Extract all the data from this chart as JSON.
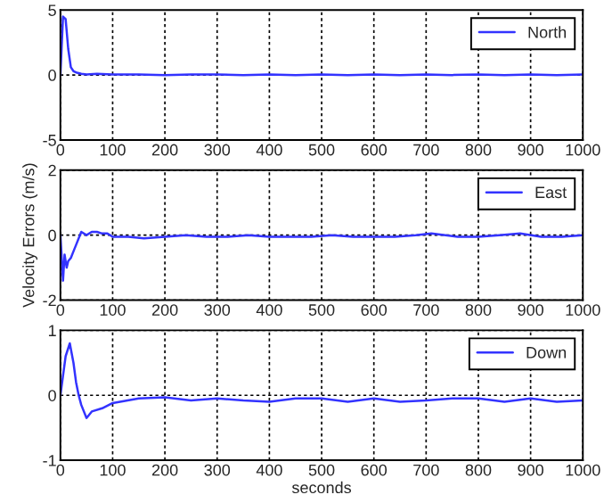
{
  "chart_data": [
    {
      "type": "line",
      "x": [
        0,
        5,
        10,
        15,
        20,
        25,
        30,
        40,
        50,
        70,
        100,
        150,
        200,
        250,
        300,
        350,
        400,
        450,
        500,
        550,
        600,
        650,
        700,
        750,
        800,
        850,
        900,
        950,
        1000
      ],
      "series": [
        {
          "name": "North",
          "color": "#3333ff",
          "values": [
            0,
            4.5,
            4.3,
            2,
            0.6,
            0.3,
            0.2,
            0.1,
            0.05,
            0.1,
            0.05,
            0.05,
            0,
            0.05,
            0.05,
            0,
            0.05,
            0,
            0.05,
            0,
            0.05,
            0,
            0.05,
            0,
            0.05,
            0,
            0.05,
            0,
            0.05
          ]
        }
      ],
      "xlim": [
        0,
        1000
      ],
      "ylim": [
        -5,
        5
      ],
      "xticks": [
        0,
        100,
        200,
        300,
        400,
        500,
        600,
        700,
        800,
        900,
        1000
      ],
      "yticks": [
        -5,
        0,
        5
      ],
      "grid": true,
      "line_style": "solid",
      "legend": "top right"
    },
    {
      "type": "line",
      "x": [
        0,
        5,
        8,
        12,
        15,
        20,
        25,
        30,
        35,
        40,
        50,
        60,
        70,
        80,
        90,
        100,
        130,
        160,
        200,
        240,
        280,
        320,
        360,
        400,
        440,
        480,
        520,
        560,
        600,
        640,
        680,
        710,
        760,
        800,
        840,
        880,
        920,
        960,
        1000
      ],
      "series": [
        {
          "name": "East",
          "color": "#3333ff",
          "values": [
            0,
            -1.4,
            -0.6,
            -1,
            -0.8,
            -0.7,
            -0.5,
            -0.3,
            -0.1,
            0.1,
            0,
            0.1,
            0.1,
            0.05,
            0.05,
            -0.05,
            -0.05,
            -0.1,
            -0.05,
            0,
            -0.05,
            -0.05,
            0,
            -0.05,
            -0.05,
            -0.05,
            0,
            -0.05,
            -0.05,
            -0.05,
            0,
            0.05,
            -0.05,
            -0.05,
            0,
            0.05,
            -0.05,
            -0.05,
            0
          ]
        }
      ],
      "xlim": [
        0,
        1000
      ],
      "ylim": [
        -2,
        2
      ],
      "xticks": [
        0,
        100,
        200,
        300,
        400,
        500,
        600,
        700,
        800,
        900,
        1000
      ],
      "yticks": [
        -2,
        0,
        2
      ],
      "ylabel": "Velocity Errors (m/s)",
      "grid": true,
      "line_style": "solid",
      "legend": "top right"
    },
    {
      "type": "line",
      "x": [
        0,
        5,
        10,
        18,
        25,
        30,
        35,
        40,
        50,
        60,
        80,
        100,
        150,
        200,
        250,
        300,
        350,
        400,
        450,
        500,
        550,
        600,
        650,
        700,
        750,
        800,
        850,
        900,
        950,
        1000
      ],
      "series": [
        {
          "name": "Down",
          "color": "#3333ff",
          "values": [
            0,
            0.3,
            0.6,
            0.8,
            0.5,
            0.2,
            0,
            -0.15,
            -0.35,
            -0.25,
            -0.2,
            -0.12,
            -0.05,
            -0.03,
            -0.08,
            -0.05,
            -0.08,
            -0.1,
            -0.05,
            -0.05,
            -0.1,
            -0.05,
            -0.1,
            -0.08,
            -0.05,
            -0.05,
            -0.1,
            -0.05,
            -0.1,
            -0.08
          ]
        }
      ],
      "xlim": [
        0,
        1000
      ],
      "ylim": [
        -1,
        1
      ],
      "xticks": [
        0,
        100,
        200,
        300,
        400,
        500,
        600,
        700,
        800,
        900,
        1000
      ],
      "yticks": [
        -1,
        0,
        1
      ],
      "xlabel": "seconds",
      "grid": true,
      "line_style": "solid",
      "legend": "top right"
    }
  ]
}
